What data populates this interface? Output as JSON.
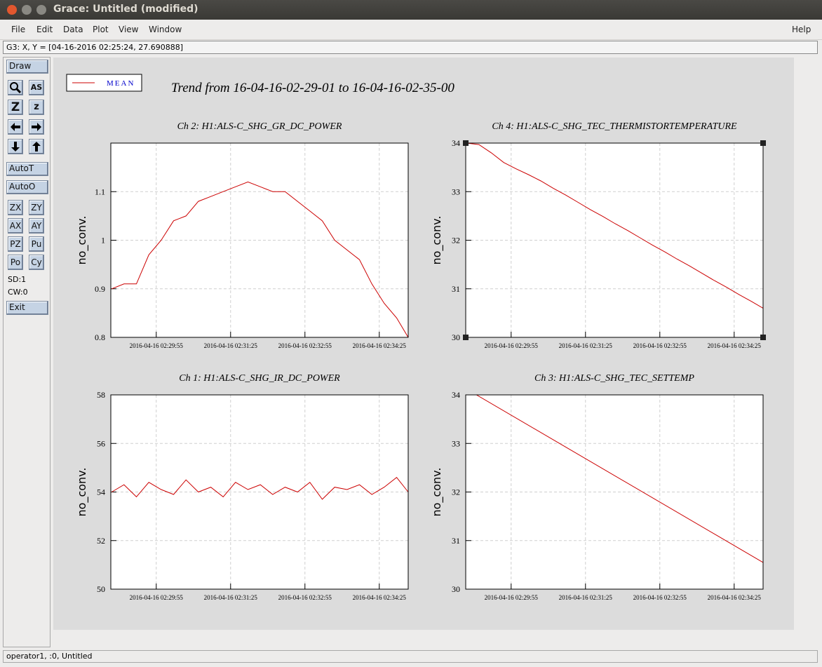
{
  "window": {
    "title": "Grace: Untitled (modified)"
  },
  "menu": [
    "File",
    "Edit",
    "Data",
    "Plot",
    "View",
    "Window"
  ],
  "help": "Help",
  "status": "G3: X, Y = [04-16-2016 02:25:24, 27.690888]",
  "toolbar": {
    "draw": "Draw",
    "icons": [
      "AS",
      "Z",
      "z"
    ],
    "buttons": [
      "AutoT",
      "AutoO"
    ],
    "grid": [
      [
        "ZX",
        "ZY"
      ],
      [
        "AX",
        "AY"
      ],
      [
        "PZ",
        "Pu"
      ],
      [
        "Po",
        "Cy"
      ]
    ],
    "sd": "SD:1",
    "cw": "CW:0",
    "exit": "Exit"
  },
  "footer": "operator1, :0, Untitled",
  "legend": {
    "label": "MEAN",
    "color": "#cc0000"
  },
  "trend_title": "Trend from 16-04-16-02-29-01 to 16-04-16-02-35-00",
  "chart_data": [
    {
      "type": "line",
      "title": "Ch 2: H1:ALS-C_SHG_GR_DC_POWER",
      "y_label": "no_conv.",
      "color": "#cc0000",
      "x": [
        "2016-04-16 02:29:01",
        "2016-04-16 02:29:16",
        "2016-04-16 02:29:31",
        "2016-04-16 02:29:46",
        "2016-04-16 02:30:01",
        "2016-04-16 02:30:16",
        "2016-04-16 02:30:31",
        "2016-04-16 02:30:46",
        "2016-04-16 02:31:01",
        "2016-04-16 02:31:16",
        "2016-04-16 02:31:31",
        "2016-04-16 02:31:46",
        "2016-04-16 02:32:01",
        "2016-04-16 02:32:16",
        "2016-04-16 02:32:31",
        "2016-04-16 02:32:46",
        "2016-04-16 02:33:01",
        "2016-04-16 02:33:16",
        "2016-04-16 02:33:31",
        "2016-04-16 02:33:46",
        "2016-04-16 02:34:01",
        "2016-04-16 02:34:16",
        "2016-04-16 02:34:31",
        "2016-04-16 02:34:46",
        "2016-04-16 02:35:00"
      ],
      "values": [
        0.9,
        0.91,
        0.91,
        0.97,
        1.0,
        1.04,
        1.05,
        1.08,
        1.09,
        1.1,
        1.11,
        1.12,
        1.11,
        1.1,
        1.1,
        1.08,
        1.06,
        1.04,
        1.0,
        0.98,
        0.96,
        0.91,
        0.87,
        0.84,
        0.8
      ],
      "xlim": [
        "2016-04-16 02:29:00",
        "2016-04-16 02:35:00"
      ],
      "xticks": [
        "2016-04-16 02:29:55",
        "2016-04-16 02:31:25",
        "2016-04-16 02:32:55",
        "2016-04-16 02:34:25"
      ],
      "ylim": [
        0.8,
        1.2
      ],
      "yticks": [
        0.8,
        0.9,
        1,
        1.1
      ],
      "grid": true
    },
    {
      "type": "line",
      "title": "Ch 4: H1:ALS-C_SHG_TEC_THERMISTORTEMPERATURE",
      "y_label": "no_conv.",
      "color": "#cc0000",
      "x": [
        "2016-04-16 02:29:01",
        "2016-04-16 02:29:16",
        "2016-04-16 02:29:31",
        "2016-04-16 02:29:46",
        "2016-04-16 02:30:01",
        "2016-04-16 02:30:16",
        "2016-04-16 02:30:31",
        "2016-04-16 02:30:46",
        "2016-04-16 02:31:01",
        "2016-04-16 02:31:16",
        "2016-04-16 02:31:31",
        "2016-04-16 02:31:46",
        "2016-04-16 02:32:01",
        "2016-04-16 02:32:16",
        "2016-04-16 02:32:31",
        "2016-04-16 02:32:46",
        "2016-04-16 02:33:01",
        "2016-04-16 02:33:16",
        "2016-04-16 02:33:31",
        "2016-04-16 02:33:46",
        "2016-04-16 02:34:01",
        "2016-04-16 02:34:16",
        "2016-04-16 02:34:31",
        "2016-04-16 02:34:46",
        "2016-04-16 02:35:00"
      ],
      "values": [
        34.0,
        33.97,
        33.8,
        33.6,
        33.47,
        33.35,
        33.22,
        33.07,
        32.93,
        32.78,
        32.63,
        32.49,
        32.34,
        32.2,
        32.05,
        31.9,
        31.76,
        31.61,
        31.47,
        31.32,
        31.17,
        31.03,
        30.88,
        30.74,
        30.6
      ],
      "xlim": [
        "2016-04-16 02:29:00",
        "2016-04-16 02:35:00"
      ],
      "xticks": [
        "2016-04-16 02:29:55",
        "2016-04-16 02:31:25",
        "2016-04-16 02:32:55",
        "2016-04-16 02:34:25"
      ],
      "ylim": [
        30,
        34
      ],
      "yticks": [
        30,
        31,
        32,
        33,
        34
      ],
      "grid": true,
      "selected": true
    },
    {
      "type": "line",
      "title": "Ch 1: H1:ALS-C_SHG_IR_DC_POWER",
      "y_label": "no_conv.",
      "color": "#cc0000",
      "x": [
        "2016-04-16 02:29:01",
        "2016-04-16 02:29:16",
        "2016-04-16 02:29:31",
        "2016-04-16 02:29:46",
        "2016-04-16 02:30:01",
        "2016-04-16 02:30:16",
        "2016-04-16 02:30:31",
        "2016-04-16 02:30:46",
        "2016-04-16 02:31:01",
        "2016-04-16 02:31:16",
        "2016-04-16 02:31:31",
        "2016-04-16 02:31:46",
        "2016-04-16 02:32:01",
        "2016-04-16 02:32:16",
        "2016-04-16 02:32:31",
        "2016-04-16 02:32:46",
        "2016-04-16 02:33:01",
        "2016-04-16 02:33:16",
        "2016-04-16 02:33:31",
        "2016-04-16 02:33:46",
        "2016-04-16 02:34:01",
        "2016-04-16 02:34:16",
        "2016-04-16 02:34:31",
        "2016-04-16 02:34:46",
        "2016-04-16 02:35:00"
      ],
      "values": [
        54.0,
        54.3,
        53.8,
        54.4,
        54.1,
        53.9,
        54.5,
        54.0,
        54.2,
        53.8,
        54.4,
        54.1,
        54.3,
        53.9,
        54.2,
        54.0,
        54.4,
        53.7,
        54.2,
        54.1,
        54.3,
        53.9,
        54.2,
        54.6,
        54.0
      ],
      "xlim": [
        "2016-04-16 02:29:00",
        "2016-04-16 02:35:00"
      ],
      "xticks": [
        "2016-04-16 02:29:55",
        "2016-04-16 02:31:25",
        "2016-04-16 02:32:55",
        "2016-04-16 02:34:25"
      ],
      "ylim": [
        50,
        58
      ],
      "yticks": [
        50,
        52,
        54,
        56,
        58
      ],
      "grid": true
    },
    {
      "type": "line",
      "title": "Ch 3: H1:ALS-C_SHG_TEC_SETTEMP",
      "y_label": "no_conv.",
      "color": "#cc0000",
      "x": [
        "2016-04-16 02:29:13",
        "2016-04-16 02:35:00"
      ],
      "values": [
        34.0,
        30.55
      ],
      "xlim": [
        "2016-04-16 02:29:00",
        "2016-04-16 02:35:00"
      ],
      "xticks": [
        "2016-04-16 02:29:55",
        "2016-04-16 02:31:25",
        "2016-04-16 02:32:55",
        "2016-04-16 02:34:25"
      ],
      "ylim": [
        30,
        34
      ],
      "yticks": [
        30,
        31,
        32,
        33,
        34
      ],
      "grid": true
    }
  ]
}
